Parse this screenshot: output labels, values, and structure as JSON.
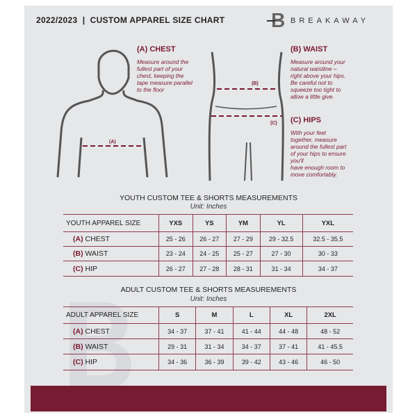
{
  "header": {
    "title": "2022/2023  |  CUSTOM APPAREL SIZE CHART",
    "brand": "BREAKAWAY",
    "logo_letter": "B"
  },
  "measures": {
    "chest": {
      "heading": "(A) CHEST",
      "marker": "(A)",
      "text": [
        "Measure around the",
        "fullest part of your",
        "chest, keeping the",
        "tape measure parallel",
        "to the floor"
      ]
    },
    "waist": {
      "heading": "(B) WAIST",
      "marker": "(B)",
      "text": [
        "Measure around your",
        "natural waistline –",
        "right above your hips.",
        "Be careful not to",
        "squeeze too tight to",
        "allow a little give."
      ]
    },
    "hips": {
      "heading": "(C) HIPS",
      "marker": "(C)",
      "text": [
        "With your feet",
        "together, measure",
        "around the fullest part",
        "of your hips to ensure",
        "you'll",
        "have enough room to",
        "move comfortably."
      ]
    }
  },
  "youth": {
    "title": "YOUTH CUSTOM TEE & SHORTS MEASUREMENTS",
    "unit": "Unit: Inches",
    "label": "YOUTH APPAREL SIZE",
    "sizes": [
      "YXS",
      "YS",
      "YM",
      "YL",
      "YXL"
    ],
    "rows": [
      {
        "letter": "(A)",
        "name": "CHEST",
        "values": [
          "25 - 26",
          "26 - 27",
          "27 - 29",
          "29 - 32.5",
          "32.5 - 35.5"
        ]
      },
      {
        "letter": "(B)",
        "name": "WAIST",
        "values": [
          "23 - 24",
          "24 - 25",
          "25 - 27",
          "27 - 30",
          "30 - 33"
        ]
      },
      {
        "letter": "(C)",
        "name": "HIP",
        "values": [
          "26 - 27",
          "27 - 28",
          "28 - 31",
          "31 - 34",
          "34 - 37"
        ]
      }
    ]
  },
  "adult": {
    "title": "ADULT CUSTOM TEE & SHORTS MEASUREMENTS",
    "unit": "Unit: Inches",
    "label": "ADULT APPAREL SIZE",
    "sizes": [
      "S",
      "M",
      "L",
      "XL",
      "2XL"
    ],
    "rows": [
      {
        "letter": "(A)",
        "name": "CHEST",
        "values": [
          "34 - 37",
          "37 - 41",
          "41 - 44",
          "44 - 48",
          "48 - 52"
        ]
      },
      {
        "letter": "(B)",
        "name": "WAIST",
        "values": [
          "29 - 31",
          "31 - 34",
          "34 - 37",
          "37 - 41",
          "41 - 45.5"
        ]
      },
      {
        "letter": "(C)",
        "name": "HIP",
        "values": [
          "34 - 36",
          "36 - 39",
          "39 - 42",
          "43 - 46",
          "46 - 50"
        ]
      }
    ]
  },
  "colors": {
    "accent": "#761b31",
    "background": "#e6e7e9"
  }
}
